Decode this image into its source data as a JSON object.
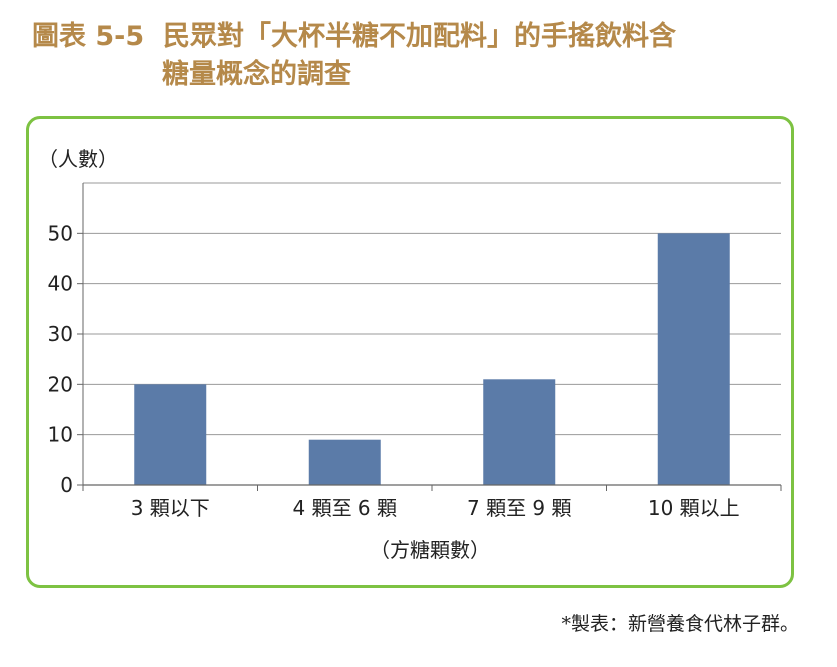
{
  "title": {
    "prefix": "圖表 5-5",
    "line1": "民眾對「大杯半糖不加配料」的手搖飲料含",
    "line2": "糖量概念的調查"
  },
  "credit": "*製表：新營養食代林子群。",
  "colors": {
    "title": "#b5894a",
    "frame": "#7dc242",
    "bar": "#5b7ba8",
    "grid": "#999999"
  },
  "chart_data": {
    "type": "bar",
    "categories": [
      "3 顆以下",
      "4 顆至 6 顆",
      "7 顆至 9 顆",
      "10 顆以上"
    ],
    "values": [
      20,
      9,
      21,
      50
    ],
    "ylabel": "（人數）",
    "xlabel": "（方糖顆數）",
    "ylim": [
      0,
      60
    ],
    "yticks": [
      0,
      10,
      20,
      30,
      40,
      50
    ],
    "grid": true
  }
}
